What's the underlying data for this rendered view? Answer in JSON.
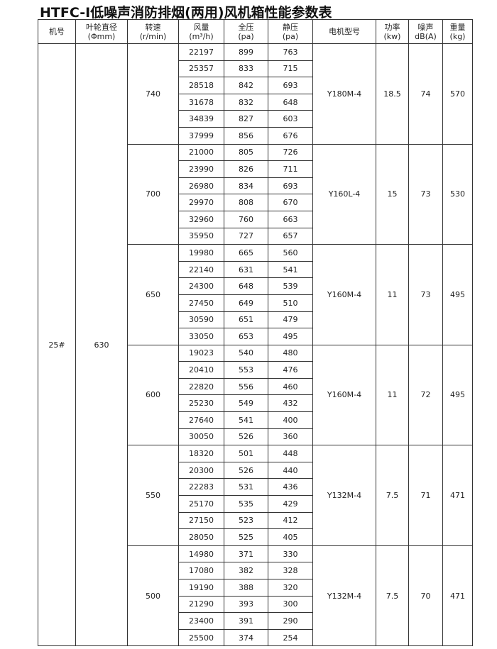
{
  "title": "HTFC-Ⅰ低噪声消防排烟(两用)风机箱性能参数表",
  "headers": [
    {
      "line1": "机号",
      "line2": ""
    },
    {
      "line1": "叶轮直径",
      "line2": "(Φmm)"
    },
    {
      "line1": "转速",
      "line2": "(r/min)"
    },
    {
      "line1": "风量",
      "line2": "(m³/h)"
    },
    {
      "line1": "全压",
      "line2": "(pa)"
    },
    {
      "line1": "静压",
      "line2": "(pa)"
    },
    {
      "line1": "电机型号",
      "line2": ""
    },
    {
      "line1": "功率",
      "line2": "(kw)"
    },
    {
      "line1": "噪声",
      "line2": "dB(A)"
    },
    {
      "line1": "重量",
      "line2": "(kg)"
    }
  ],
  "machine_no": "25#",
  "impeller_diameter": "630",
  "groups": [
    {
      "speed": "740",
      "motor": "Y180M-4",
      "power": "18.5",
      "noise": "74",
      "weight": "570",
      "rows": [
        [
          "22197",
          "899",
          "763"
        ],
        [
          "25357",
          "833",
          "715"
        ],
        [
          "28518",
          "842",
          "693"
        ],
        [
          "31678",
          "832",
          "648"
        ],
        [
          "34839",
          "827",
          "603"
        ],
        [
          "37999",
          "856",
          "676"
        ]
      ]
    },
    {
      "speed": "700",
      "motor": "Y160L-4",
      "power": "15",
      "noise": "73",
      "weight": "530",
      "rows": [
        [
          "21000",
          "805",
          "726"
        ],
        [
          "23990",
          "826",
          "711"
        ],
        [
          "26980",
          "834",
          "693"
        ],
        [
          "29970",
          "808",
          "670"
        ],
        [
          "32960",
          "760",
          "663"
        ],
        [
          "35950",
          "727",
          "657"
        ]
      ]
    },
    {
      "speed": "650",
      "motor": "Y160M-4",
      "power": "11",
      "noise": "73",
      "weight": "495",
      "rows": [
        [
          "19980",
          "665",
          "560"
        ],
        [
          "22140",
          "631",
          "541"
        ],
        [
          "24300",
          "648",
          "539"
        ],
        [
          "27450",
          "649",
          "510"
        ],
        [
          "30590",
          "651",
          "479"
        ],
        [
          "33050",
          "653",
          "495"
        ]
      ]
    },
    {
      "speed": "600",
      "motor": "Y160M-4",
      "power": "11",
      "noise": "72",
      "weight": "495",
      "rows": [
        [
          "19023",
          "540",
          "480"
        ],
        [
          "20410",
          "553",
          "476"
        ],
        [
          "22820",
          "556",
          "460"
        ],
        [
          "25230",
          "549",
          "432"
        ],
        [
          "27640",
          "541",
          "400"
        ],
        [
          "30050",
          "526",
          "360"
        ]
      ]
    },
    {
      "speed": "550",
      "motor": "Y132M-4",
      "power": "7.5",
      "noise": "71",
      "weight": "471",
      "rows": [
        [
          "18320",
          "501",
          "448"
        ],
        [
          "20300",
          "526",
          "440"
        ],
        [
          "22283",
          "531",
          "436"
        ],
        [
          "25170",
          "535",
          "429"
        ],
        [
          "27150",
          "523",
          "412"
        ],
        [
          "28050",
          "525",
          "405"
        ]
      ]
    },
    {
      "speed": "500",
      "motor": "Y132M-4",
      "power": "7.5",
      "noise": "70",
      "weight": "471",
      "rows": [
        [
          "14980",
          "371",
          "330"
        ],
        [
          "17080",
          "382",
          "328"
        ],
        [
          "19190",
          "388",
          "320"
        ],
        [
          "21290",
          "393",
          "300"
        ],
        [
          "23400",
          "391",
          "290"
        ],
        [
          "25500",
          "374",
          "254"
        ]
      ]
    }
  ]
}
